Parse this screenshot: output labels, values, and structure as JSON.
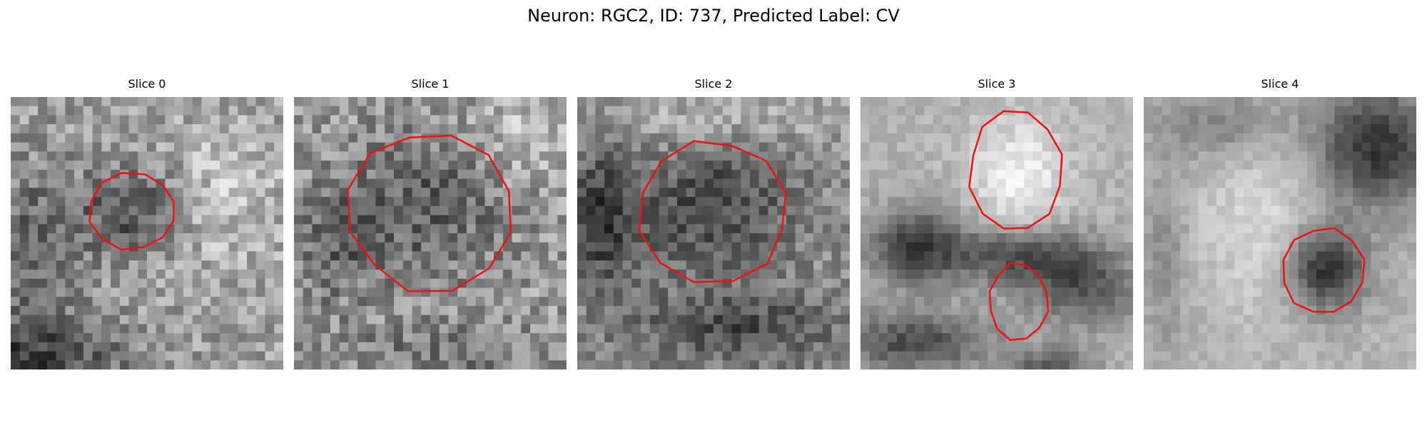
{
  "figure": {
    "title": "Neuron: RGC2, ID: 737, Predicted Label: CV"
  },
  "colors": {
    "outline": "#ee1111",
    "background": "#ffffff"
  },
  "panels": [
    {
      "label": "Slice 0"
    },
    {
      "label": "Slice 1"
    },
    {
      "label": "Slice 2"
    },
    {
      "label": "Slice 3"
    },
    {
      "label": "Slice 4"
    }
  ]
}
